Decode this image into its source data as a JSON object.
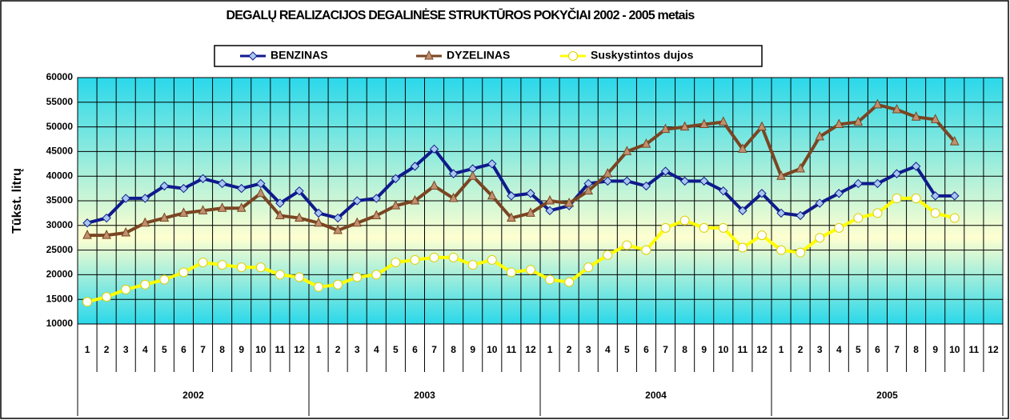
{
  "chart_data": {
    "type": "line",
    "title": "DEGALŲ REALIZACIJOS DEGALINĖSE STRUKTŪROS POKYČIAI 2002 - 2005 metais",
    "ylabel": "Tūkst. litrų",
    "categories": [
      "1",
      "2",
      "3",
      "4",
      "5",
      "6",
      "7",
      "8",
      "9",
      "10",
      "11",
      "12",
      "1",
      "2",
      "3",
      "4",
      "5",
      "6",
      "7",
      "8",
      "9",
      "10",
      "11",
      "12",
      "1",
      "2",
      "3",
      "4",
      "5",
      "6",
      "7",
      "8",
      "9",
      "10",
      "11",
      "12",
      "1",
      "2",
      "3",
      "4",
      "5",
      "6",
      "7",
      "8",
      "9",
      "10",
      "11",
      "12"
    ],
    "year_groups": [
      "2002",
      "2003",
      "2004",
      "2005"
    ],
    "ylim": [
      10000,
      60000
    ],
    "yticks": [
      10000,
      15000,
      20000,
      25000,
      30000,
      35000,
      40000,
      45000,
      50000,
      55000,
      60000
    ],
    "grid": true,
    "legend": "top",
    "series": [
      {
        "name": "BENZINAS",
        "color": "#101a8c",
        "marker": "diamond",
        "marker_color": "#a8c8f0",
        "values": [
          30500,
          31500,
          35500,
          35500,
          38000,
          37500,
          39500,
          38500,
          37500,
          38500,
          34500,
          37000,
          32500,
          31500,
          35000,
          35500,
          39500,
          42000,
          45500,
          40500,
          41500,
          42500,
          36000,
          36500,
          33000,
          34000,
          38500,
          39000,
          39000,
          38000,
          41000,
          39000,
          39000,
          37000,
          33000,
          36500,
          32500,
          32000,
          34500,
          36500,
          38500,
          38500,
          40500,
          42000,
          36000,
          36000,
          null,
          null
        ]
      },
      {
        "name": "DYZELINAS",
        "color": "#7a4522",
        "marker": "triangle",
        "marker_color": "#c09070",
        "values": [
          28000,
          28000,
          28500,
          30500,
          31500,
          32500,
          33000,
          33500,
          33500,
          36500,
          32000,
          31500,
          30500,
          29000,
          30500,
          32000,
          34000,
          35000,
          38000,
          35500,
          40000,
          36000,
          31500,
          32500,
          35000,
          34500,
          37000,
          40500,
          45000,
          46500,
          49500,
          50000,
          50500,
          51000,
          45500,
          50000,
          40000,
          41500,
          48000,
          50500,
          51000,
          54500,
          53500,
          52000,
          51500,
          47000,
          null,
          null
        ]
      },
      {
        "name": "Suskystintos dujos",
        "color": "#ffff00",
        "marker": "circle",
        "marker_color": "#ffffff",
        "values": [
          14500,
          15500,
          17000,
          18000,
          19000,
          20500,
          22500,
          22000,
          21500,
          21500,
          20000,
          19500,
          17500,
          18000,
          19500,
          20000,
          22500,
          23000,
          23500,
          23500,
          22000,
          23000,
          20500,
          21000,
          19000,
          18500,
          21500,
          24000,
          26000,
          25000,
          29500,
          31000,
          29500,
          29500,
          25500,
          28000,
          25000,
          24500,
          27500,
          29500,
          31500,
          32500,
          35500,
          35500,
          32500,
          31500,
          null,
          null
        ]
      }
    ]
  }
}
